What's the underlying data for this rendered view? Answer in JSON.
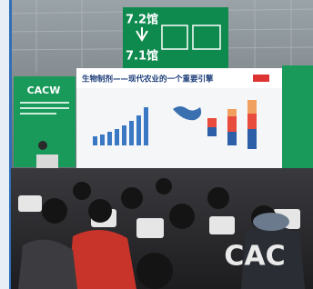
{
  "sign": {
    "upper": "7.2馆",
    "lower": "7.1馆"
  },
  "left_screen": {
    "logo": "CACW"
  },
  "slide": {
    "title": "生物制剂——现代农业的一个重要引擎"
  },
  "watermark": "CAC"
}
